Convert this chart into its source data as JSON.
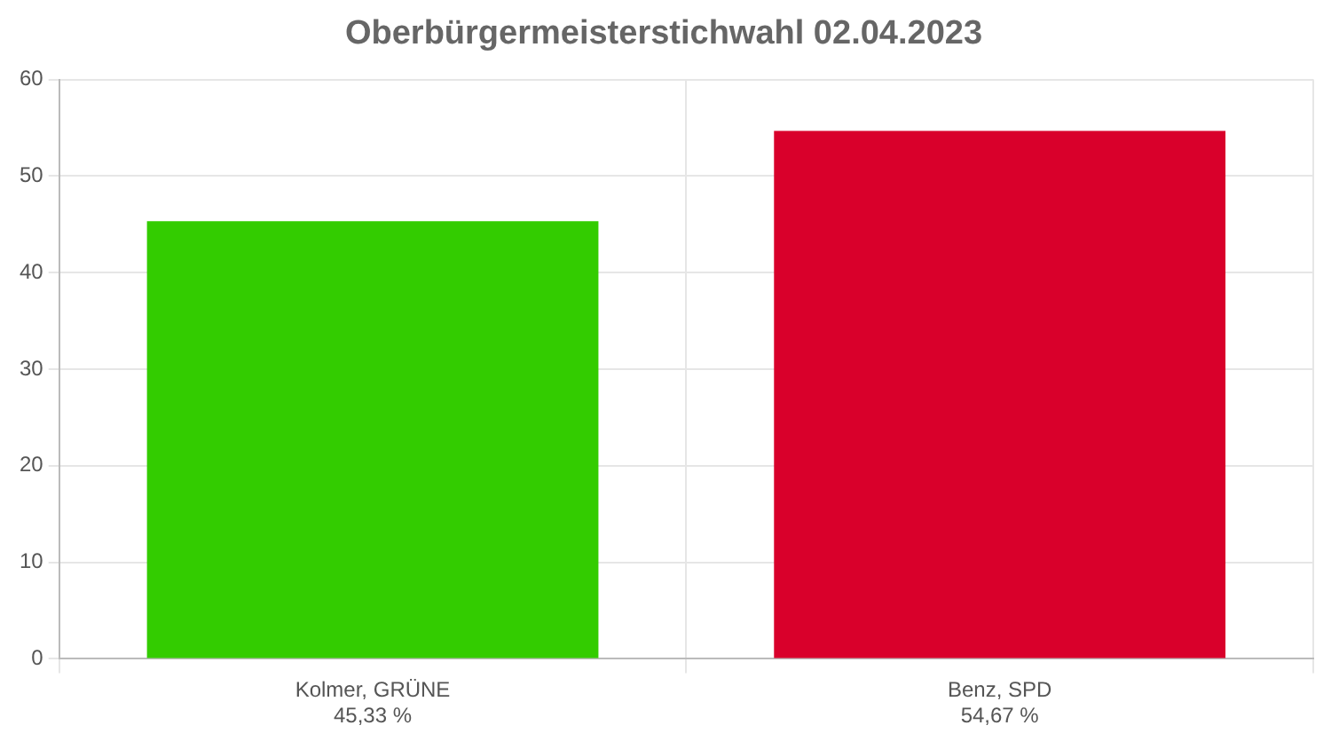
{
  "chart_data": {
    "type": "bar",
    "title": "Oberbürgermeisterstichwahl 02.04.2023",
    "categories": [
      "Kolmer, GRÜNE",
      "Benz, SPD"
    ],
    "values": [
      45.33,
      54.67
    ],
    "value_labels": [
      "45,33 %",
      "54,67 %"
    ],
    "colors": [
      "#33cc00",
      "#d9002b"
    ],
    "ylim": [
      0,
      60
    ],
    "yticks": [
      0,
      10,
      20,
      30,
      40,
      50,
      60
    ],
    "grid": true,
    "legend": false
  }
}
